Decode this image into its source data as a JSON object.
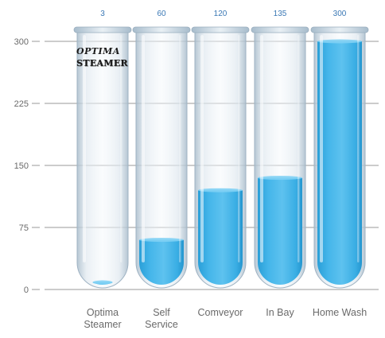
{
  "chart_data": {
    "type": "bar",
    "categories": [
      "Optima\nSteamer",
      "Self\nService",
      "Comveyor",
      "In Bay",
      "Home Wash"
    ],
    "values": [
      3,
      60,
      120,
      135,
      300
    ],
    "value_labels": [
      "3",
      "60",
      "120",
      "135",
      "300"
    ],
    "yticks": [
      "0",
      "75",
      "150",
      "225",
      "300"
    ],
    "ylim": [
      0,
      300
    ],
    "grid": true,
    "title": "",
    "xlabel": "",
    "ylabel": "",
    "colors": {
      "liquid": "#3fb2e6",
      "liquid_top": "#7fd0f4",
      "label_top": "#3a78b5",
      "axis_text": "#6a6a6a",
      "grid": "#9a9a9a"
    }
  },
  "logo": {
    "line1": "OPTIMA",
    "line2": "STEAMER"
  }
}
